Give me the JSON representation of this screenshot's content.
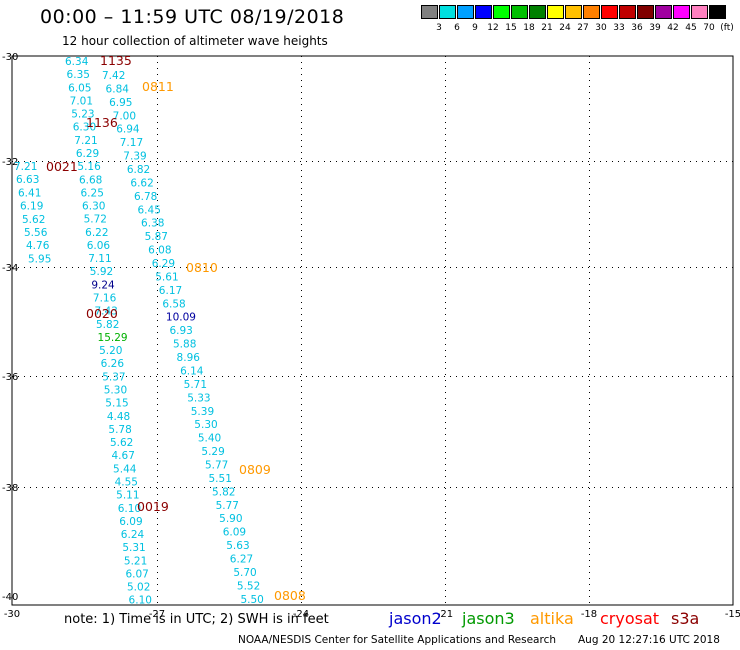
{
  "header": {
    "title": "00:00 – 11:59 UTC 08/19/2018",
    "subtitle": "12 hour collection of altimeter wave heights"
  },
  "colorbar": {
    "labels": [
      "3",
      "6",
      "9",
      "12",
      "15",
      "18",
      "21",
      "24",
      "27",
      "30",
      "33",
      "36",
      "39",
      "42",
      "45",
      "70",
      "(ft)"
    ],
    "colors": [
      "#808080",
      "#00e0e0",
      "#00a0ff",
      "#0000ff",
      "#00ff00",
      "#00c000",
      "#008000",
      "#ffff00",
      "#ffc000",
      "#ff8000",
      "#ff0000",
      "#c00000",
      "#800000",
      "#a000a0",
      "#ff00ff",
      "#ff80c0",
      "#000000"
    ]
  },
  "axes": {
    "lat_labels": [
      "-30",
      "-32",
      "-34",
      "-36",
      "-38",
      "-40"
    ],
    "lon_labels": [
      "-30",
      "-27",
      "-24",
      "-21",
      "-18",
      "-15"
    ]
  },
  "tracks": [
    {
      "sat": "altika",
      "time": "0811",
      "time_color": "#ff9900",
      "values": [
        "7.42",
        "6.84",
        "6.95",
        "7.00",
        "6.94",
        "7.17",
        "7.39",
        "6.82",
        "6.62",
        "6.78",
        "6.45",
        "6.38",
        "5.87",
        "6.08",
        "6.29",
        "5.61",
        "6.17",
        "6.58",
        "10.09",
        "6.93",
        "5.88",
        "8.96",
        "6.14",
        "5.71",
        "5.33",
        "5.39",
        "5.30",
        "5.40",
        "5.29",
        "5.77",
        "5.51",
        "5.82",
        "5.77",
        "5.90",
        "6.09",
        "5.63",
        "6.27",
        "5.70",
        "5.52",
        "5.50"
      ],
      "colors": {
        "10.09": "#0000a0"
      }
    },
    {
      "sat": "cryosat",
      "time": "1136",
      "time_color": "#8b0000",
      "values": [
        "6.34",
        "6.35",
        "6.05",
        "7.01",
        "5.23",
        "6.30",
        "7.21",
        "6.29",
        "5.16",
        "6.68",
        "6.25",
        "6.30",
        "5.72",
        "6.22",
        "6.06",
        "7.11",
        "5.92",
        "9.24",
        "7.16",
        "7.43",
        "5.82",
        "15.29",
        "5.20",
        "6.26",
        "5.37",
        "5.30",
        "5.15",
        "4.48",
        "5.78",
        "5.62",
        "4.67",
        "5.44",
        "4.55",
        "5.11",
        "6.10",
        "6.09",
        "6.24",
        "5.31",
        "5.21",
        "6.07",
        "5.02",
        "6.10"
      ],
      "colors": {
        "9.24": "#00008b",
        "15.29": "#00b000"
      }
    },
    {
      "sat": "cryosat2",
      "time": "0021",
      "time_color": "#8b0000",
      "values": [
        "7.21",
        "6.63",
        "6.41",
        "6.19",
        "5.62",
        "5.56",
        "4.76",
        "5.95"
      ]
    }
  ],
  "time_labels": [
    {
      "text": "1135",
      "color": "#8b0000"
    },
    {
      "text": "0811",
      "color": "#ff9900"
    },
    {
      "text": "1136",
      "color": "#8b0000"
    },
    {
      "text": "0021",
      "color": "#8b0000"
    },
    {
      "text": "0810",
      "color": "#ff9900"
    },
    {
      "text": "0020",
      "color": "#8b0000"
    },
    {
      "text": "0809",
      "color": "#ff9900"
    },
    {
      "text": "0019",
      "color": "#8b0000"
    },
    {
      "text": "0808",
      "color": "#ff9900"
    }
  ],
  "note": "note:  1) Time is in UTC;  2) SWH is in feet",
  "satellites": [
    {
      "name": "jason2",
      "color": "#0000cc"
    },
    {
      "name": "jason3",
      "color": "#009900"
    },
    {
      "name": "altika",
      "color": "#ff9900"
    },
    {
      "name": "cryosat",
      "color": "#ff0000"
    },
    {
      "name": "s3a",
      "color": "#8b0000"
    }
  ],
  "footer": {
    "credit": "NOAA/NESDIS Center for Satellite Applications and Research",
    "timestamp": "Aug 20 12:27:16 UTC 2018"
  }
}
